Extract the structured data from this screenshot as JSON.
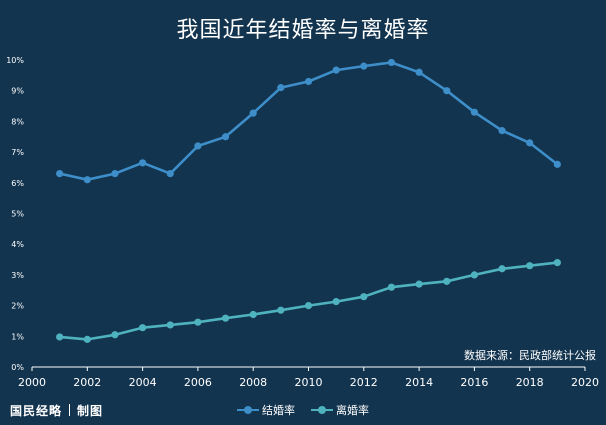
{
  "title": "我国近年结婚率与离婚率",
  "source": "数据来源：民政部统计公报",
  "brand": {
    "name": "国民经略",
    "suffix": "制图"
  },
  "colors": {
    "background": "#13344f",
    "marriage": "#3d8ec9",
    "divorce": "#4fb3bf",
    "axis_text": "#ffffff",
    "axis_line": "#ffffff"
  },
  "chart_data": {
    "type": "line",
    "title": "我国近年结婚率与离婚率",
    "xlabel": "",
    "ylabel": "",
    "xlim": [
      2000,
      2020
    ],
    "ylim": [
      0,
      10
    ],
    "x_ticks": [
      "2000",
      "2002",
      "2004",
      "2006",
      "2008",
      "2010",
      "2012",
      "2014",
      "2016",
      "2018",
      "2020"
    ],
    "y_ticks": [
      "0%",
      "1%",
      "2%",
      "3%",
      "4%",
      "5%",
      "6%",
      "7%",
      "8%",
      "9%",
      "10%"
    ],
    "grid": false,
    "legend_position": "bottom",
    "x": [
      2001,
      2002,
      2003,
      2004,
      2005,
      2006,
      2007,
      2008,
      2009,
      2010,
      2011,
      2012,
      2013,
      2014,
      2015,
      2016,
      2017,
      2018,
      2019
    ],
    "series": [
      {
        "name": "结婚率",
        "color": "#3d8ec9",
        "values": [
          6.3,
          6.1,
          6.3,
          6.65,
          6.3,
          7.2,
          7.5,
          8.27,
          9.1,
          9.3,
          9.67,
          9.8,
          9.92,
          9.6,
          9.0,
          8.3,
          7.7,
          7.3,
          6.6
        ]
      },
      {
        "name": "离婚率",
        "color": "#4fb3bf",
        "values": [
          0.98,
          0.9,
          1.05,
          1.28,
          1.37,
          1.46,
          1.59,
          1.71,
          1.85,
          2.0,
          2.13,
          2.29,
          2.6,
          2.7,
          2.79,
          3.0,
          3.2,
          3.3,
          3.4
        ]
      }
    ]
  }
}
